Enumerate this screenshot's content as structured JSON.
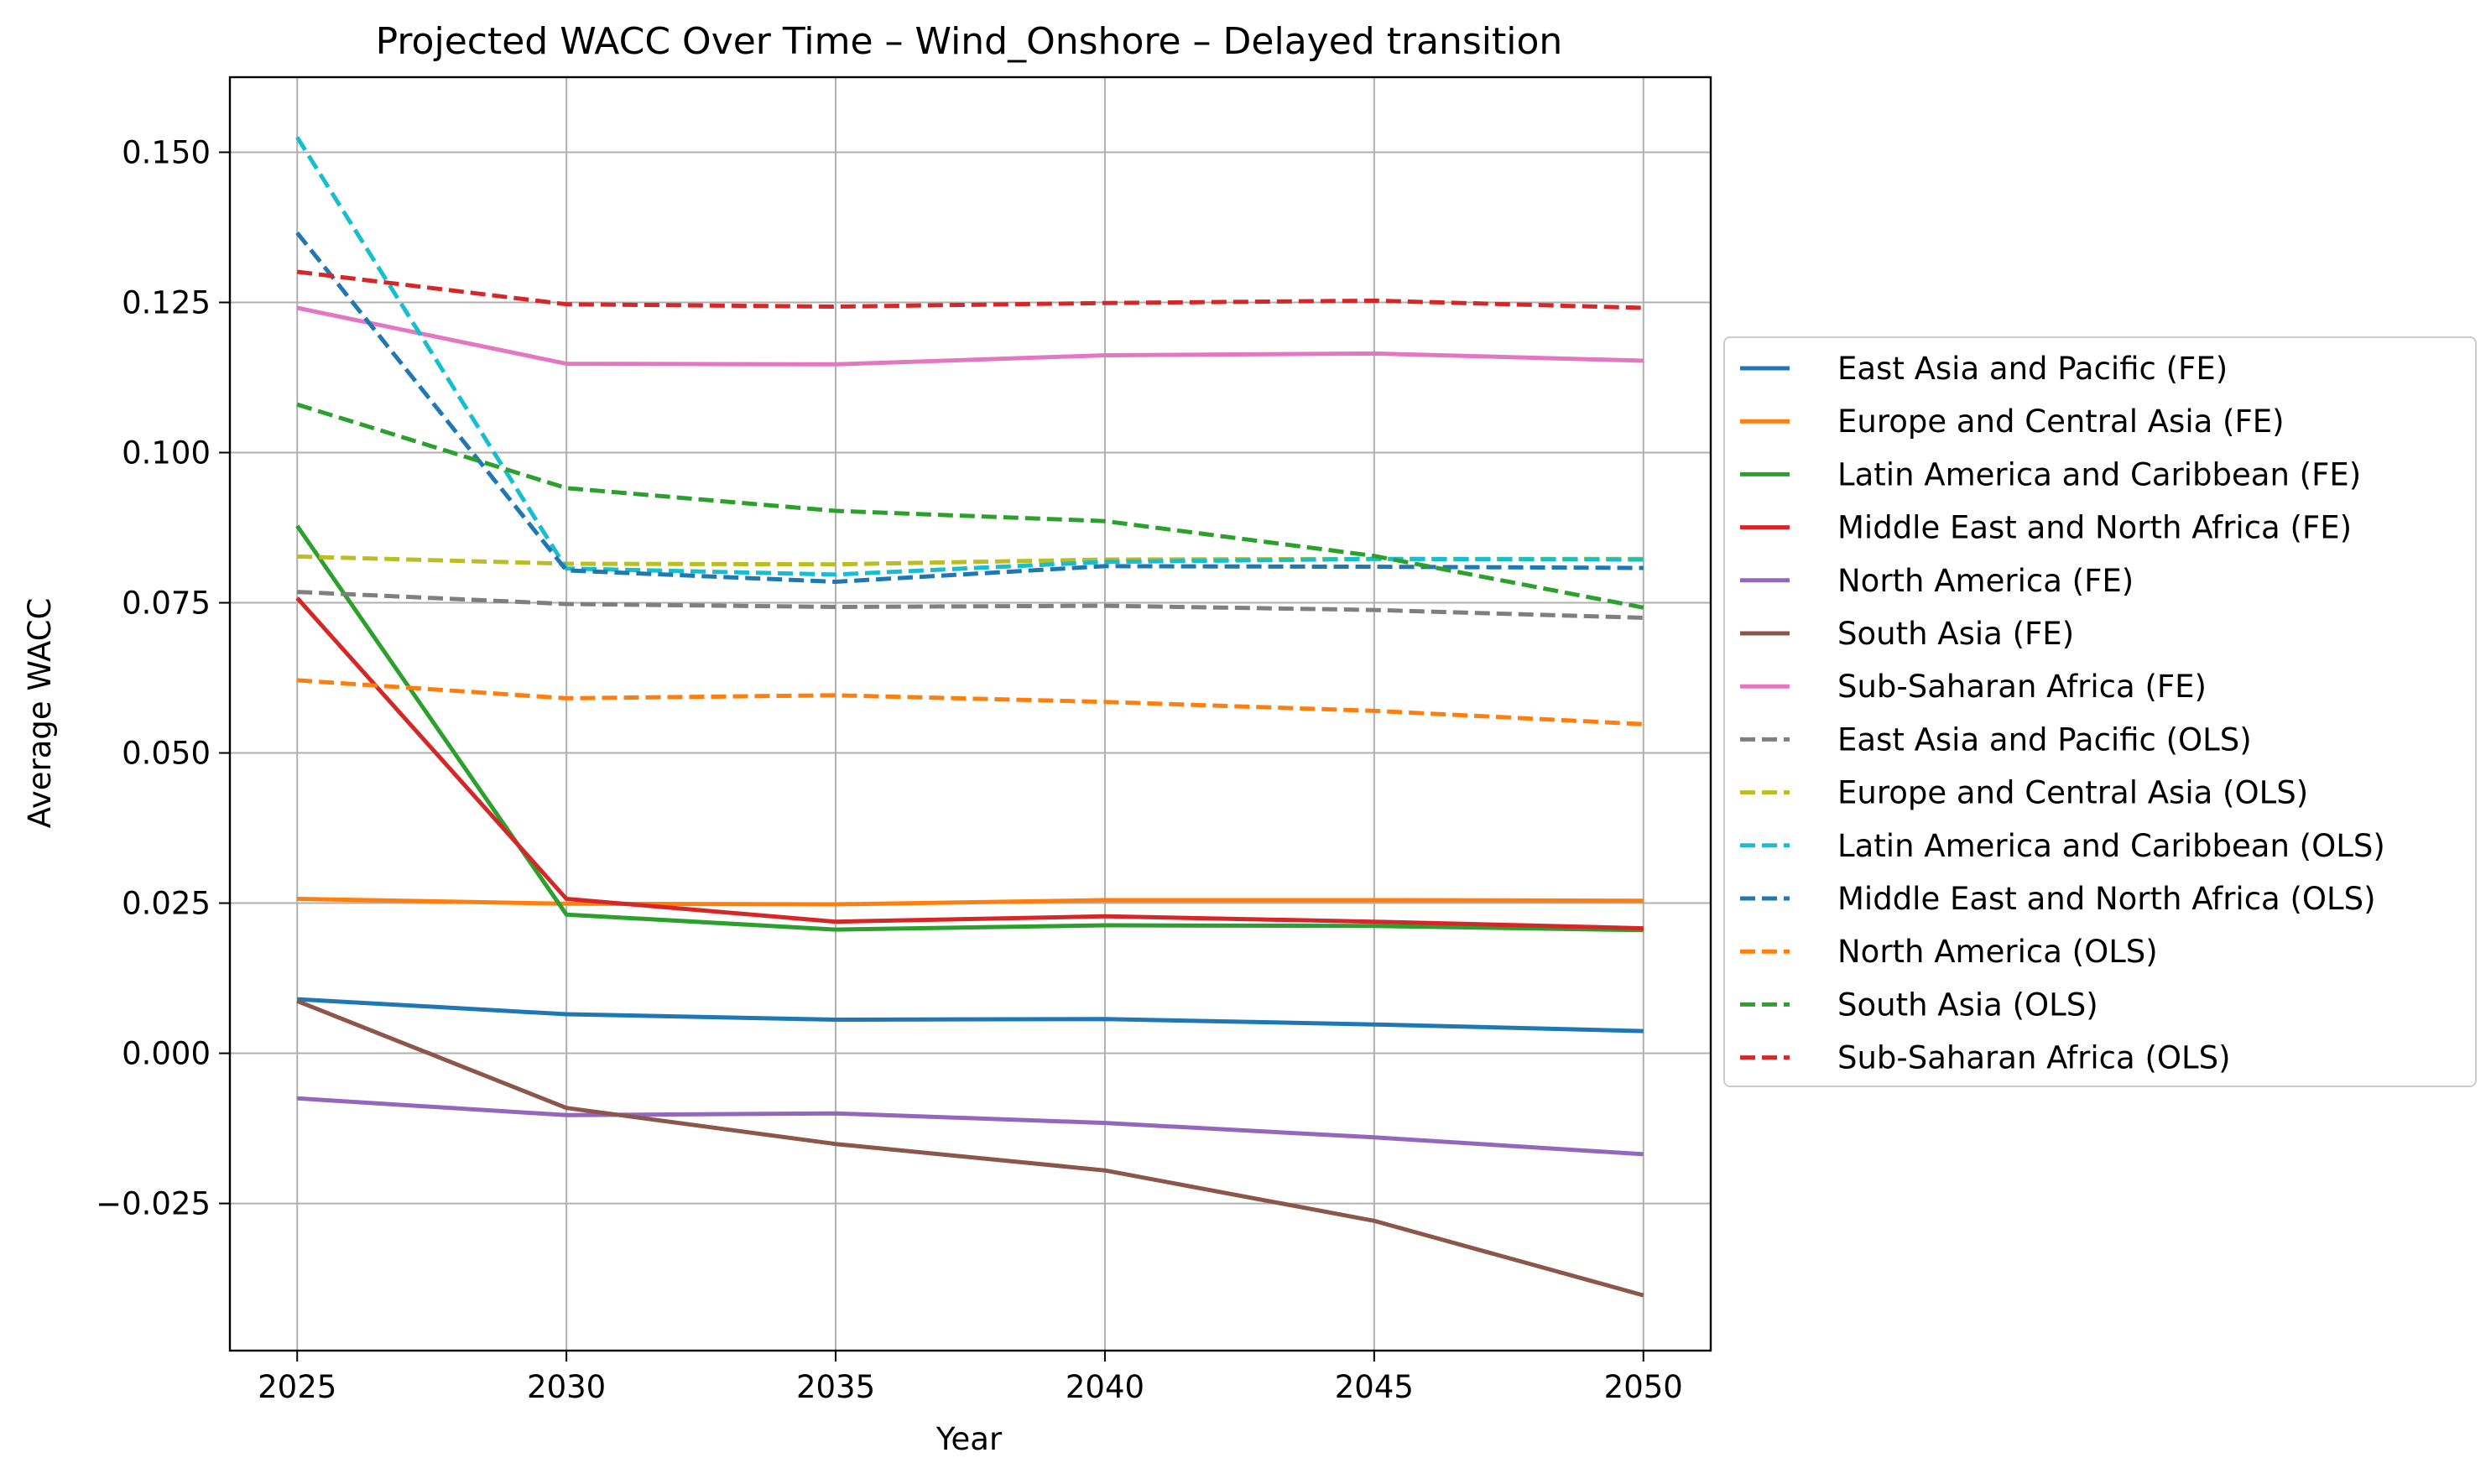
{
  "chart_data": {
    "type": "line",
    "title": "Projected WACC Over Time – Wind_Onshore – Delayed transition",
    "xlabel": "Year",
    "ylabel": "Average WACC",
    "x": [
      2025,
      2030,
      2035,
      2040,
      2045,
      2050
    ],
    "xlim": [
      2023.75,
      2051.25
    ],
    "ylim": [
      -0.0495,
      0.1625
    ],
    "xticks": [
      "2025",
      "2030",
      "2035",
      "2040",
      "2045",
      "2050"
    ],
    "yticks": [
      {
        "value": 0.15,
        "label": "0.150"
      },
      {
        "value": 0.125,
        "label": "0.125"
      },
      {
        "value": 0.1,
        "label": "0.100"
      },
      {
        "value": 0.075,
        "label": "0.075"
      },
      {
        "value": 0.05,
        "label": "0.050"
      },
      {
        "value": 0.025,
        "label": "0.025"
      },
      {
        "value": 0.0,
        "label": "0.000"
      },
      {
        "value": -0.025,
        "label": "−0.025"
      }
    ],
    "grid": true,
    "legend_position": "right, outside plot",
    "series": [
      {
        "name": "East Asia and Pacific (FE)",
        "color": "#1f77b4",
        "dash": "solid",
        "values": [
          0.009,
          0.0065,
          0.0056,
          0.0057,
          0.0048,
          0.0037
        ]
      },
      {
        "name": "Europe and Central Asia (FE)",
        "color": "#ff7f0e",
        "dash": "solid",
        "values": [
          0.0257,
          0.0249,
          0.0248,
          0.0255,
          0.0255,
          0.0254
        ]
      },
      {
        "name": "Latin America and Caribbean (FE)",
        "color": "#2ca02c",
        "dash": "solid",
        "values": [
          0.0878,
          0.0231,
          0.0206,
          0.0213,
          0.0212,
          0.0205
        ]
      },
      {
        "name": "Middle East and North Africa (FE)",
        "color": "#d62728",
        "dash": "solid",
        "values": [
          0.0758,
          0.0257,
          0.0219,
          0.0228,
          0.0219,
          0.0208
        ]
      },
      {
        "name": "North America (FE)",
        "color": "#9467bd",
        "dash": "solid",
        "values": [
          -0.0075,
          -0.0103,
          -0.01,
          -0.0116,
          -0.014,
          -0.0168
        ]
      },
      {
        "name": "South Asia (FE)",
        "color": "#8c564b",
        "dash": "solid",
        "values": [
          0.0087,
          -0.0091,
          -0.0151,
          -0.0195,
          -0.0279,
          -0.0403
        ]
      },
      {
        "name": "Sub-Saharan Africa (FE)",
        "color": "#e377c2",
        "dash": "solid",
        "values": [
          0.1241,
          0.1148,
          0.1147,
          0.1162,
          0.1165,
          0.1153
        ]
      },
      {
        "name": "East Asia and Pacific (OLS)",
        "color": "#7f7f7f",
        "dash": "dashed",
        "values": [
          0.0768,
          0.0748,
          0.0743,
          0.0745,
          0.0738,
          0.0725
        ]
      },
      {
        "name": "Europe and Central Asia (OLS)",
        "color": "#bcbd22",
        "dash": "dashed",
        "values": [
          0.0827,
          0.0815,
          0.0814,
          0.0822,
          0.0823,
          0.0823
        ]
      },
      {
        "name": "Latin America and Caribbean (OLS)",
        "color": "#17becf",
        "dash": "dashed",
        "values": [
          0.1525,
          0.0807,
          0.0797,
          0.0818,
          0.0823,
          0.0822
        ]
      },
      {
        "name": "Middle East and North Africa (OLS)",
        "color": "#1f77b4",
        "dash": "dashed",
        "values": [
          0.1366,
          0.0804,
          0.0785,
          0.0811,
          0.081,
          0.0808
        ]
      },
      {
        "name": "North America (OLS)",
        "color": "#ff7f0e",
        "dash": "dashed",
        "values": [
          0.0621,
          0.0591,
          0.0596,
          0.0585,
          0.057,
          0.0548
        ]
      },
      {
        "name": "South Asia (OLS)",
        "color": "#2ca02c",
        "dash": "dashed",
        "values": [
          0.108,
          0.0941,
          0.0903,
          0.0886,
          0.0828,
          0.0742
        ]
      },
      {
        "name": "Sub-Saharan Africa (OLS)",
        "color": "#d62728",
        "dash": "dashed",
        "values": [
          0.1301,
          0.1247,
          0.1243,
          0.1249,
          0.1253,
          0.1241
        ]
      }
    ]
  }
}
